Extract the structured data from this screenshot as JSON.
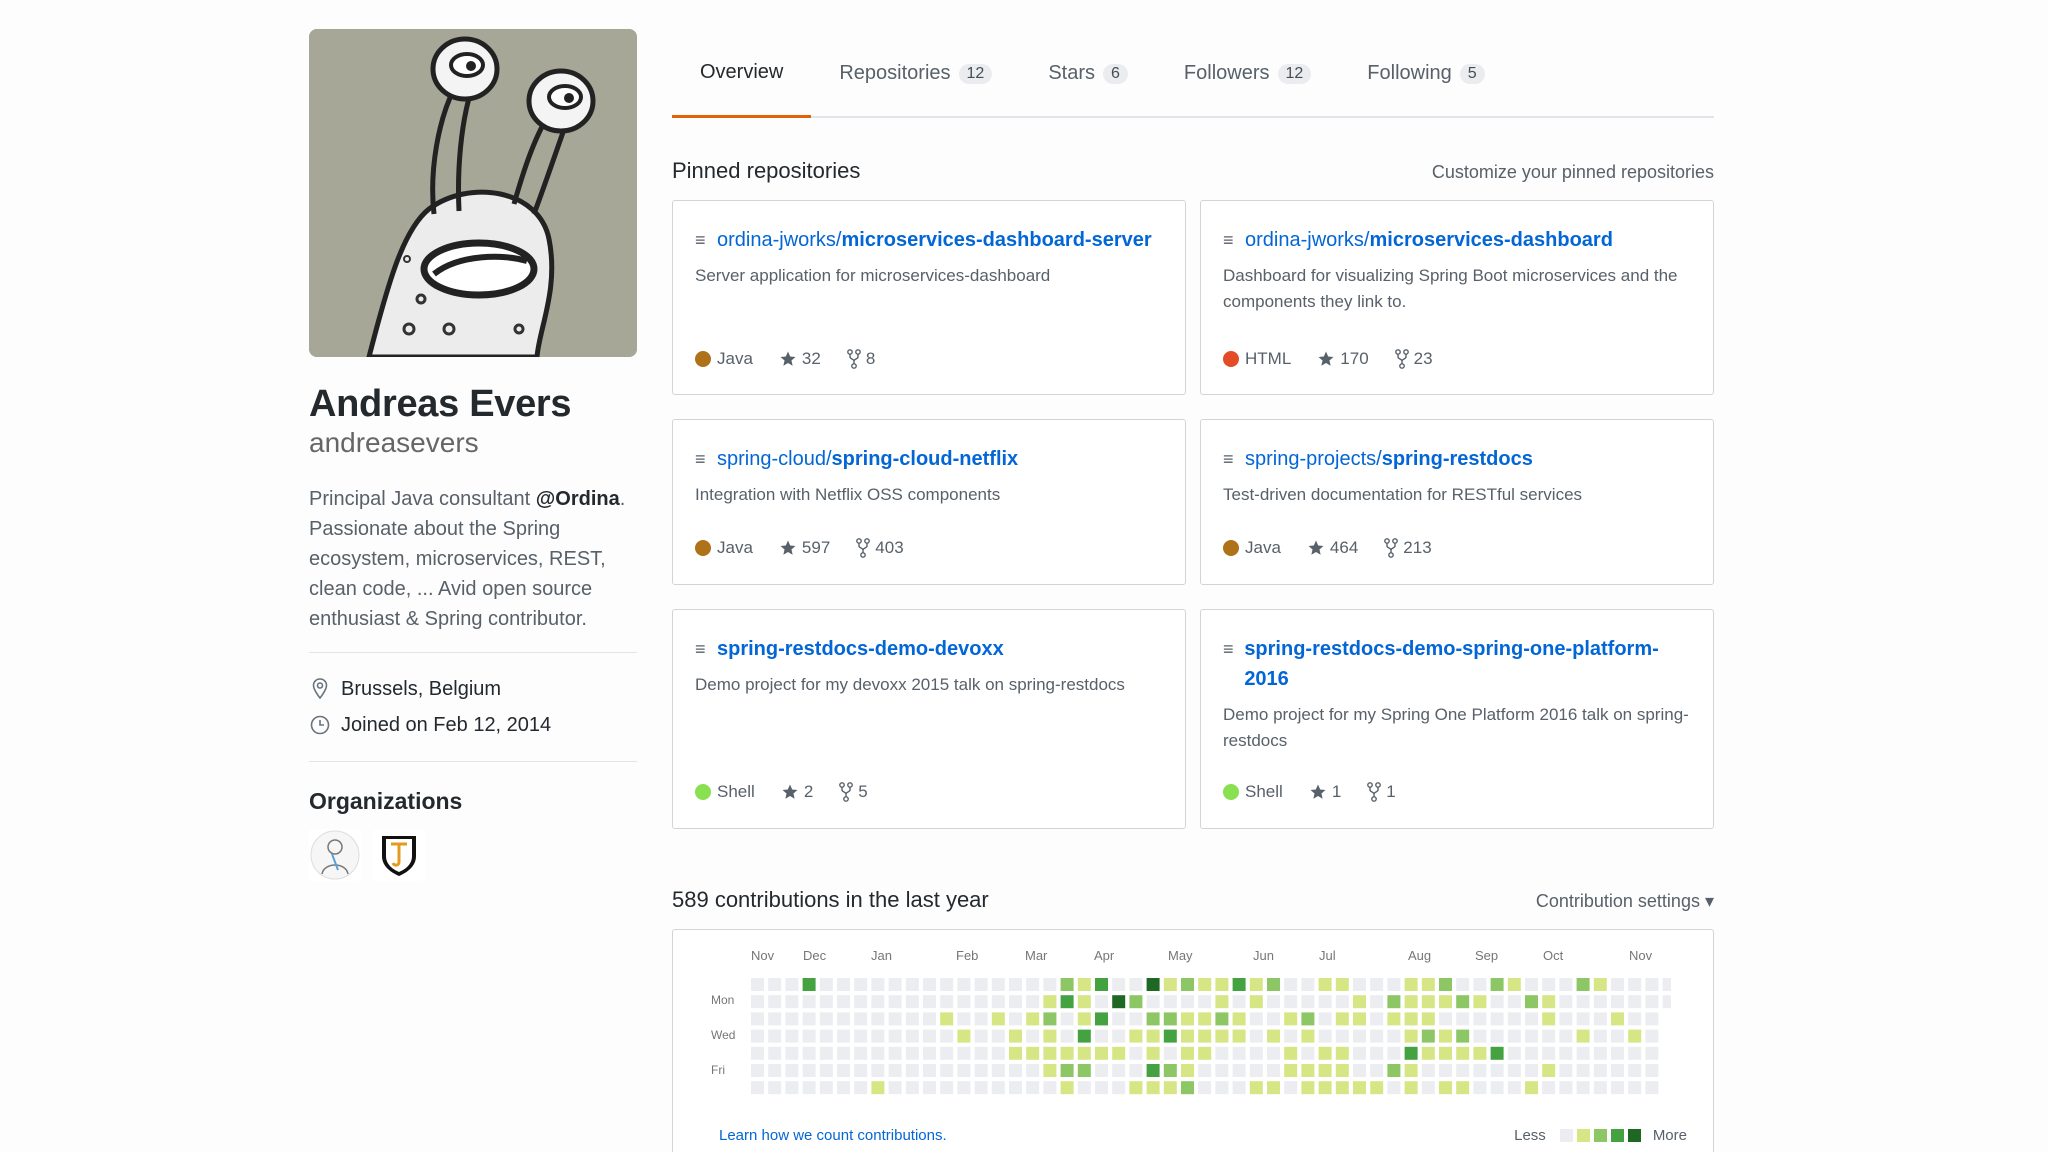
{
  "profile": {
    "fullname": "Andreas Evers",
    "username": "andreasevers",
    "bio_before": "Principal Java consultant ",
    "bio_mention": "@Ordina",
    "bio_after": ". Passionate about the Spring ecosystem, microservices, REST, clean code, ... Avid open source enthusiast & Spring contributor.",
    "location": "Brussels, Belgium",
    "joined": "Joined on Feb 12, 2014",
    "organizations_title": "Organizations"
  },
  "tabs": [
    {
      "label": "Overview",
      "count": null,
      "active": true
    },
    {
      "label": "Repositories",
      "count": "12"
    },
    {
      "label": "Stars",
      "count": "6"
    },
    {
      "label": "Followers",
      "count": "12"
    },
    {
      "label": "Following",
      "count": "5"
    }
  ],
  "pinned": {
    "title": "Pinned repositories",
    "customize": "Customize your pinned repositories",
    "repos": [
      {
        "owner": "ordina-jworks/",
        "name": "microservices-dashboard-server",
        "desc": "Server application for microservices-dashboard",
        "lang": "Java",
        "color": "#b07219",
        "stars": "32",
        "forks": "8"
      },
      {
        "owner": "ordina-jworks/",
        "name": "microservices-dashboard",
        "desc": "Dashboard for visualizing Spring Boot microservices and the components they link to.",
        "lang": "HTML",
        "color": "#e34c26",
        "stars": "170",
        "forks": "23"
      },
      {
        "owner": "spring-cloud/",
        "name": "spring-cloud-netflix",
        "desc": "Integration with Netflix OSS components",
        "lang": "Java",
        "color": "#b07219",
        "stars": "597",
        "forks": "403"
      },
      {
        "owner": "spring-projects/",
        "name": "spring-restdocs",
        "desc": "Test-driven documentation for RESTful services",
        "lang": "Java",
        "color": "#b07219",
        "stars": "464",
        "forks": "213"
      },
      {
        "owner": "",
        "name": "spring-restdocs-demo-devoxx",
        "desc": "Demo project for my devoxx 2015 talk on spring-restdocs",
        "lang": "Shell",
        "color": "#89e051",
        "stars": "2",
        "forks": "5"
      },
      {
        "owner": "",
        "name": "spring-restdocs-demo-spring-one-platform-2016",
        "desc": "Demo project for my Spring One Platform 2016 talk on spring-restdocs",
        "lang": "Shell",
        "color": "#89e051",
        "stars": "1",
        "forks": "1"
      }
    ]
  },
  "contributions": {
    "title": "589 contributions in the last year",
    "settings": "Contribution settings ▾",
    "months": [
      "Nov",
      "Dec",
      "Jan",
      "Feb",
      "Mar",
      "Apr",
      "May",
      "Jun",
      "Jul",
      "Aug",
      "Sep",
      "Oct",
      "Nov"
    ],
    "days": [
      "Mon",
      "Wed",
      "Fri"
    ],
    "learn": "Learn how we count contributions.",
    "less": "Less",
    "more": "More",
    "colors": [
      "#ebedf0",
      "#d6e685",
      "#8cc665",
      "#44a340",
      "#1e6823"
    ]
  }
}
